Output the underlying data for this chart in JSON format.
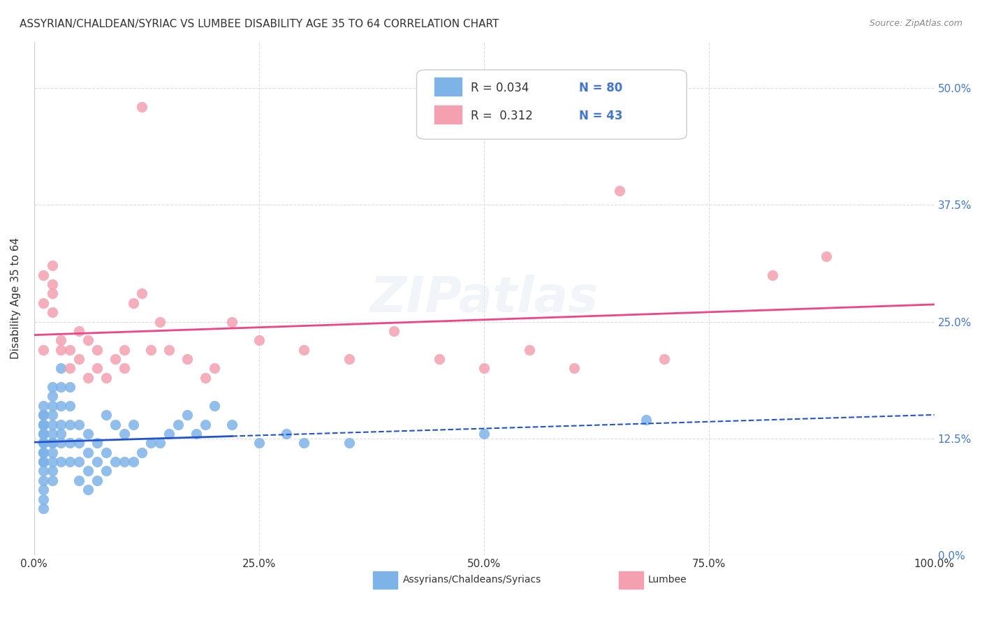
{
  "title": "ASSYRIAN/CHALDEAN/SYRIAC VS LUMBEE DISABILITY AGE 35 TO 64 CORRELATION CHART",
  "source": "Source: ZipAtlas.com",
  "xlabel": "",
  "ylabel": "Disability Age 35 to 64",
  "ytick_labels": [
    "0.0%",
    "12.5%",
    "25.0%",
    "37.5%",
    "50.0%"
  ],
  "ytick_values": [
    0.0,
    0.125,
    0.25,
    0.375,
    0.5
  ],
  "xtick_labels": [
    "0.0%",
    "25.0%",
    "50.0%",
    "75.0%",
    "100.0%"
  ],
  "xtick_values": [
    0.0,
    0.25,
    0.5,
    0.75,
    1.0
  ],
  "xlim": [
    0.0,
    1.0
  ],
  "ylim": [
    0.0,
    0.55
  ],
  "legend_R_blue": "0.034",
  "legend_N_blue": "80",
  "legend_R_pink": "0.312",
  "legend_N_pink": "43",
  "blue_color": "#7EB3E8",
  "pink_color": "#F4A0B0",
  "blue_line_color": "#2255CC",
  "pink_line_color": "#EE4488",
  "watermark": "ZIPatlas",
  "background_color": "#ffffff",
  "grid_color": "#dddddd",
  "blue_x": [
    0.01,
    0.01,
    0.01,
    0.01,
    0.01,
    0.01,
    0.01,
    0.01,
    0.01,
    0.01,
    0.01,
    0.01,
    0.01,
    0.01,
    0.01,
    0.01,
    0.01,
    0.01,
    0.01,
    0.01,
    0.02,
    0.02,
    0.02,
    0.02,
    0.02,
    0.02,
    0.02,
    0.02,
    0.02,
    0.02,
    0.02,
    0.02,
    0.03,
    0.03,
    0.03,
    0.03,
    0.03,
    0.03,
    0.03,
    0.04,
    0.04,
    0.04,
    0.04,
    0.04,
    0.05,
    0.05,
    0.05,
    0.05,
    0.06,
    0.06,
    0.06,
    0.06,
    0.07,
    0.07,
    0.07,
    0.08,
    0.08,
    0.08,
    0.09,
    0.09,
    0.1,
    0.1,
    0.11,
    0.11,
    0.12,
    0.13,
    0.14,
    0.15,
    0.16,
    0.17,
    0.18,
    0.19,
    0.2,
    0.22,
    0.25,
    0.28,
    0.3,
    0.35,
    0.5,
    0.68
  ],
  "blue_y": [
    0.05,
    0.06,
    0.07,
    0.08,
    0.09,
    0.1,
    0.1,
    0.11,
    0.11,
    0.12,
    0.12,
    0.12,
    0.13,
    0.13,
    0.14,
    0.14,
    0.14,
    0.15,
    0.15,
    0.16,
    0.08,
    0.09,
    0.1,
    0.11,
    0.12,
    0.12,
    0.13,
    0.14,
    0.15,
    0.16,
    0.17,
    0.18,
    0.1,
    0.12,
    0.13,
    0.14,
    0.16,
    0.18,
    0.2,
    0.1,
    0.12,
    0.14,
    0.16,
    0.18,
    0.08,
    0.1,
    0.12,
    0.14,
    0.07,
    0.09,
    0.11,
    0.13,
    0.08,
    0.1,
    0.12,
    0.09,
    0.11,
    0.15,
    0.1,
    0.14,
    0.1,
    0.13,
    0.1,
    0.14,
    0.11,
    0.12,
    0.12,
    0.13,
    0.14,
    0.15,
    0.13,
    0.14,
    0.16,
    0.14,
    0.12,
    0.13,
    0.12,
    0.12,
    0.13,
    0.145
  ],
  "pink_x": [
    0.01,
    0.01,
    0.01,
    0.02,
    0.02,
    0.02,
    0.02,
    0.03,
    0.03,
    0.04,
    0.04,
    0.05,
    0.05,
    0.06,
    0.06,
    0.07,
    0.07,
    0.08,
    0.09,
    0.1,
    0.1,
    0.11,
    0.12,
    0.13,
    0.14,
    0.15,
    0.17,
    0.19,
    0.2,
    0.22,
    0.25,
    0.3,
    0.35,
    0.4,
    0.45,
    0.5,
    0.55,
    0.6,
    0.65,
    0.7,
    0.82,
    0.88,
    0.12
  ],
  "pink_y": [
    0.22,
    0.27,
    0.3,
    0.26,
    0.28,
    0.29,
    0.31,
    0.22,
    0.23,
    0.2,
    0.22,
    0.21,
    0.24,
    0.19,
    0.23,
    0.2,
    0.22,
    0.19,
    0.21,
    0.2,
    0.22,
    0.27,
    0.28,
    0.22,
    0.25,
    0.22,
    0.21,
    0.19,
    0.2,
    0.25,
    0.23,
    0.22,
    0.21,
    0.24,
    0.21,
    0.2,
    0.22,
    0.2,
    0.39,
    0.21,
    0.3,
    0.32,
    0.48
  ]
}
